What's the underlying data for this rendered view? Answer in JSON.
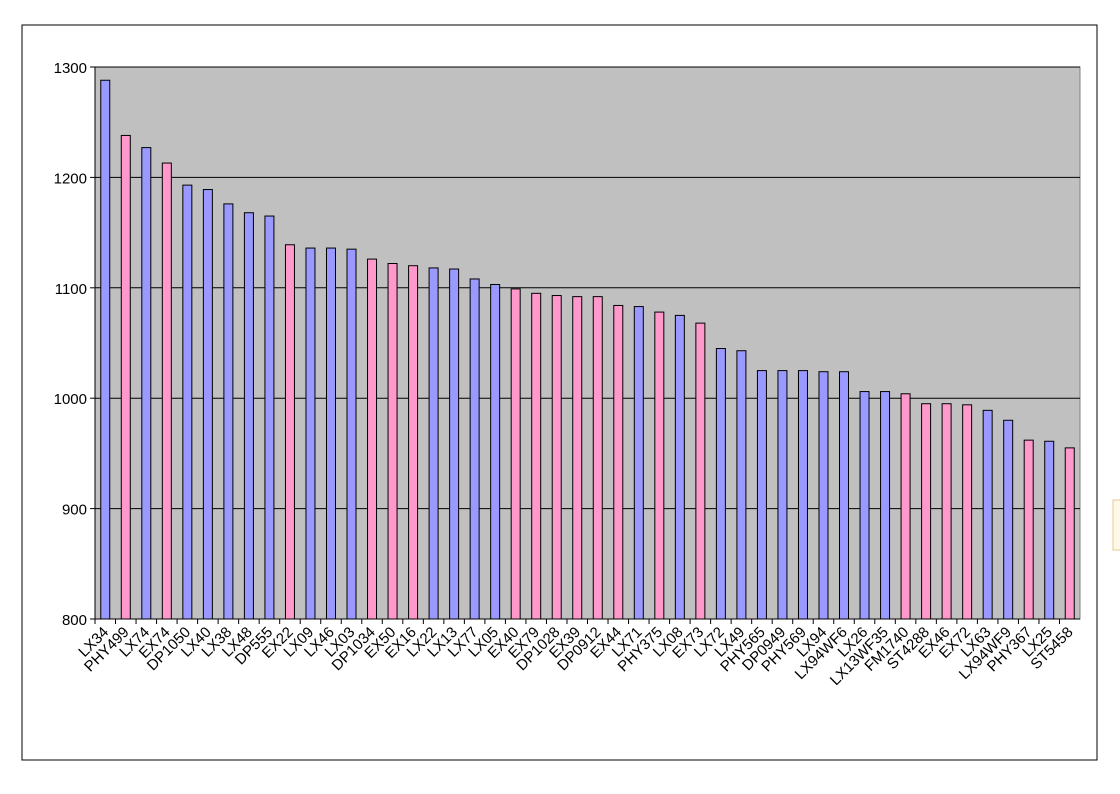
{
  "chart_data": {
    "type": "bar",
    "categories": [
      "LX34",
      "PHY499",
      "LX74",
      "EX74",
      "DP1050",
      "LX40",
      "LX38",
      "LX48",
      "DP555",
      "EX22",
      "LX09",
      "LX46",
      "LX03",
      "DP1034",
      "EX50",
      "EX16",
      "LX22",
      "LX13",
      "LX77",
      "LX05",
      "EX40",
      "EX79",
      "DP1028",
      "EX39",
      "DP0912",
      "EX44",
      "LX71",
      "PHY375",
      "LX08",
      "EX73",
      "LX72",
      "LX49",
      "PHY565",
      "DP0949",
      "PHY569",
      "LX94",
      "LX94WF6",
      "LX26",
      "LX13WF35",
      "FM1740",
      "ST4288",
      "EX46",
      "EX72",
      "LX63",
      "LX94WF9",
      "PHY367",
      "LX25",
      "ST5458"
    ],
    "values": [
      1288,
      1238,
      1227,
      1213,
      1193,
      1189,
      1176,
      1168,
      1165,
      1139,
      1136,
      1136,
      1135,
      1126,
      1122,
      1120,
      1118,
      1117,
      1108,
      1103,
      1099,
      1095,
      1093,
      1092,
      1092,
      1084,
      1083,
      1078,
      1075,
      1068,
      1045,
      1043,
      1025,
      1025,
      1025,
      1024,
      1024,
      1006,
      1006,
      1004,
      995,
      995,
      994,
      989,
      980,
      962,
      961,
      955
    ],
    "colors": [
      "#9999ff",
      "#ff99cc",
      "#9999ff",
      "#ff99cc",
      "#9999ff",
      "#9999ff",
      "#9999ff",
      "#9999ff",
      "#9999ff",
      "#ff99cc",
      "#9999ff",
      "#9999ff",
      "#9999ff",
      "#ff99cc",
      "#ff99cc",
      "#ff99cc",
      "#9999ff",
      "#9999ff",
      "#9999ff",
      "#9999ff",
      "#ff99cc",
      "#ff99cc",
      "#ff99cc",
      "#ff99cc",
      "#ff99cc",
      "#ff99cc",
      "#9999ff",
      "#ff99cc",
      "#9999ff",
      "#ff99cc",
      "#9999ff",
      "#9999ff",
      "#9999ff",
      "#9999ff",
      "#9999ff",
      "#9999ff",
      "#9999ff",
      "#9999ff",
      "#9999ff",
      "#ff99cc",
      "#ff99cc",
      "#ff99cc",
      "#ff99cc",
      "#9999ff",
      "#9999ff",
      "#ff99cc",
      "#9999ff",
      "#ff99cc"
    ],
    "ylim": [
      800,
      1300
    ],
    "yticks": [
      800,
      900,
      1000,
      1100,
      1200,
      1300
    ],
    "grid": true,
    "plot_background": "#c0c0c0"
  }
}
